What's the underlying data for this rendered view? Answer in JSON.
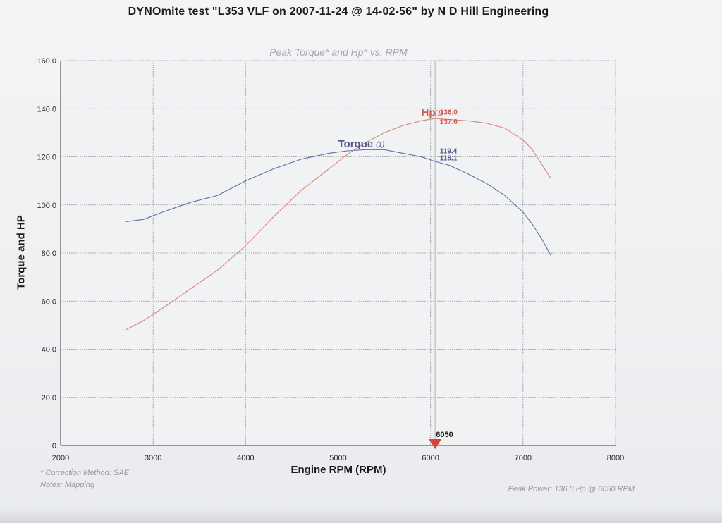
{
  "header": {
    "title": "DYNOmite test \"L353 VLF on 2007-11-24 @ 14-02-56\" by N D Hill Engineering"
  },
  "chart_data": {
    "type": "line",
    "title": "Peak Torque* and Hp* vs. RPM",
    "xlabel": "Engine RPM (RPM)",
    "ylabel": "Torque and HP",
    "xlim": [
      2000,
      8000
    ],
    "ylim": [
      0,
      160
    ],
    "x_ticks": [
      "2000",
      "3000",
      "4000",
      "5000",
      "6000",
      "7000",
      "8000"
    ],
    "y_ticks": [
      "0",
      "20.0",
      "40.0",
      "60.0",
      "80.0",
      "100.0",
      "120.0",
      "140.0",
      "160.0"
    ],
    "grid": true,
    "series": [
      {
        "name": "Torque (1)",
        "color": "#6a6aa6",
        "x": [
          2700,
          2900,
          3100,
          3400,
          3700,
          4000,
          4300,
          4600,
          4900,
          5100,
          5300,
          5500,
          5700,
          5900,
          6050,
          6200,
          6400,
          6600,
          6800,
          7000,
          7100,
          7200,
          7300
        ],
        "y": [
          93,
          94,
          97,
          101,
          104,
          110,
          115,
          119,
          121.5,
          122.5,
          123,
          123,
          121.5,
          120,
          118.1,
          116.5,
          113,
          109,
          104,
          97,
          92,
          86,
          79
        ]
      },
      {
        "name": "Hp (1)",
        "color": "#d8857a",
        "x": [
          2700,
          2900,
          3100,
          3400,
          3700,
          4000,
          4300,
          4600,
          4900,
          5100,
          5300,
          5500,
          5700,
          5900,
          6050,
          6200,
          6400,
          6600,
          6800,
          7000,
          7100,
          7200,
          7300
        ],
        "y": [
          48,
          52,
          57,
          65,
          73,
          83,
          95,
          106,
          115,
          121,
          126,
          130,
          133,
          135,
          136,
          135.5,
          135,
          134,
          132,
          127,
          123,
          117,
          111
        ]
      }
    ],
    "series_labels": [
      {
        "text": "Torque",
        "suffix": "(1)",
        "color": "#55558f",
        "x": 5000,
        "y": 124
      },
      {
        "text": "Hp",
        "suffix": "(1)",
        "color": "#cf5a4e",
        "x": 5900,
        "y": 137
      }
    ],
    "annotations": [
      {
        "text": "136.0",
        "color": "#cf5a4e",
        "x": 6100,
        "y": 137.6
      },
      {
        "text": "137.6",
        "color": "#cf5a4e",
        "x": 6100,
        "y": 133.6
      },
      {
        "text": "119.4",
        "color": "#55558f",
        "x": 6100,
        "y": 121.5
      },
      {
        "text": "118.1",
        "color": "#55558f",
        "x": 6100,
        "y": 118.6
      }
    ],
    "cursor": {
      "x": 6050,
      "label": "6050"
    }
  },
  "footer": {
    "note1": "* Correction Method: SAE",
    "note2": "Notes: Mapping",
    "peak_power": "Peak Power: 136.0 Hp @ 6050 RPM"
  }
}
